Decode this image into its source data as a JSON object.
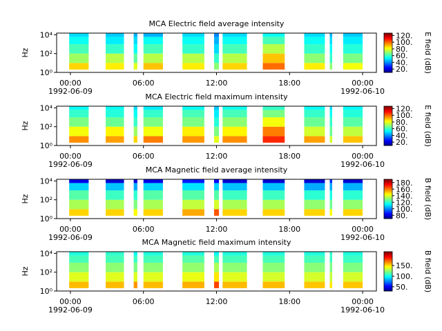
{
  "chart_data": [
    {
      "type": "spectrogram",
      "title": "MCA  Electric field average intensity",
      "ylabel": "Hz",
      "zlabel": "E field (dB)",
      "log_y": true,
      "xlim": [
        -1.13,
        25.13
      ],
      "xticks": [
        {
          "value": 0,
          "label": "00:00"
        },
        {
          "value": 6,
          "label": "06:00"
        },
        {
          "value": 12,
          "label": "12:00"
        },
        {
          "value": 18,
          "label": "18:00"
        },
        {
          "value": 24,
          "label": "00:00"
        }
      ],
      "xtick_dates": [
        {
          "value": 0,
          "label": "1992-06-09"
        },
        {
          "value": 24,
          "label": "1992-06-10"
        }
      ],
      "ylim": [
        1,
        15000
      ],
      "yticks": [
        {
          "value": 1,
          "label": "10⁰"
        },
        {
          "value": 100,
          "label": "10²"
        },
        {
          "value": 10000,
          "label": "10⁴"
        }
      ],
      "zlim": [
        10,
        127
      ],
      "zticks": [
        {
          "value": 20,
          "label": "20."
        },
        {
          "value": 40,
          "label": "40."
        },
        {
          "value": 60,
          "label": "60."
        },
        {
          "value": 80,
          "label": "80."
        },
        {
          "value": 100,
          "label": "100."
        },
        {
          "value": 120,
          "label": "120."
        }
      ],
      "segments": [
        [
          -0.1,
          1.5
        ],
        [
          2.9,
          4.4
        ],
        [
          5.2,
          5.5
        ],
        [
          6.0,
          7.6
        ],
        [
          9.2,
          11.0
        ],
        [
          11.8,
          12.2
        ],
        [
          12.5,
          14.5
        ],
        [
          15.8,
          17.6
        ],
        [
          19.2,
          20.9
        ],
        [
          21.3,
          21.5
        ],
        [
          22.4,
          24.0
        ]
      ],
      "bands": [
        2,
        10,
        100,
        1000,
        6000,
        14000
      ],
      "z": [
        [
          88,
          72,
          62,
          55,
          50
        ],
        [
          85,
          75,
          60,
          52,
          48
        ],
        [
          80,
          65,
          55,
          50,
          45
        ],
        [
          90,
          75,
          62,
          55,
          45
        ],
        [
          85,
          75,
          60,
          55,
          50
        ],
        [
          70,
          60,
          50,
          45,
          40
        ],
        [
          88,
          75,
          62,
          55,
          50
        ],
        [
          100,
          90,
          75,
          62,
          55
        ],
        [
          85,
          70,
          60,
          55,
          50
        ],
        [
          70,
          60,
          55,
          50,
          45
        ],
        [
          82,
          68,
          58,
          52,
          48
        ]
      ]
    },
    {
      "type": "spectrogram",
      "title": "MCA  Electric field maximum intensity",
      "ylabel": "Hz",
      "zlabel": "E field (dB)",
      "log_y": true,
      "xlim": [
        -1.13,
        25.13
      ],
      "xticks": [
        {
          "value": 0,
          "label": "00:00"
        },
        {
          "value": 6,
          "label": "06:00"
        },
        {
          "value": 12,
          "label": "12:00"
        },
        {
          "value": 18,
          "label": "18:00"
        },
        {
          "value": 24,
          "label": "00:00"
        }
      ],
      "xtick_dates": [
        {
          "value": 0,
          "label": "1992-06-09"
        },
        {
          "value": 24,
          "label": "1992-06-10"
        }
      ],
      "ylim": [
        1,
        15000
      ],
      "yticks": [
        {
          "value": 1,
          "label": "10⁰"
        },
        {
          "value": 100,
          "label": "10²"
        },
        {
          "value": 10000,
          "label": "10⁴"
        }
      ],
      "zlim": [
        10,
        127
      ],
      "zticks": [
        {
          "value": 20,
          "label": "20."
        },
        {
          "value": 40,
          "label": "40."
        },
        {
          "value": 60,
          "label": "60."
        },
        {
          "value": 80,
          "label": "80."
        },
        {
          "value": 100,
          "label": "100."
        },
        {
          "value": 120,
          "label": "120."
        }
      ],
      "segments": [
        [
          -0.1,
          1.5
        ],
        [
          2.9,
          4.4
        ],
        [
          5.2,
          5.5
        ],
        [
          6.0,
          7.6
        ],
        [
          9.2,
          11.0
        ],
        [
          11.8,
          12.2
        ],
        [
          12.5,
          14.5
        ],
        [
          15.8,
          17.6
        ],
        [
          19.2,
          20.9
        ],
        [
          21.3,
          21.5
        ],
        [
          22.4,
          24.0
        ]
      ],
      "bands": [
        2,
        10,
        100,
        1000,
        6000,
        14000
      ],
      "z": [
        [
          96,
          82,
          68,
          60,
          55
        ],
        [
          94,
          84,
          66,
          58,
          55
        ],
        [
          88,
          72,
          60,
          55,
          50
        ],
        [
          98,
          82,
          68,
          60,
          52
        ],
        [
          95,
          85,
          68,
          62,
          55
        ],
        [
          80,
          68,
          58,
          52,
          48
        ],
        [
          96,
          84,
          70,
          62,
          56
        ],
        [
          108,
          98,
          82,
          68,
          60
        ],
        [
          94,
          78,
          66,
          60,
          55
        ],
        [
          78,
          66,
          60,
          55,
          50
        ],
        [
          90,
          76,
          64,
          58,
          54
        ]
      ]
    },
    {
      "type": "spectrogram",
      "title": "MCA  Magnetic field average intensity",
      "ylabel": "Hz",
      "zlabel": "B field (dB)",
      "log_y": true,
      "xlim": [
        -1.13,
        25.13
      ],
      "xticks": [
        {
          "value": 0,
          "label": "00:00"
        },
        {
          "value": 6,
          "label": "06:00"
        },
        {
          "value": 12,
          "label": "12:00"
        },
        {
          "value": 18,
          "label": "18:00"
        },
        {
          "value": 24,
          "label": "00:00"
        }
      ],
      "xtick_dates": [
        {
          "value": 0,
          "label": "1992-06-09"
        },
        {
          "value": 24,
          "label": "1992-06-10"
        }
      ],
      "ylim": [
        1,
        15000
      ],
      "yticks": [
        {
          "value": 1,
          "label": "10⁰"
        },
        {
          "value": 100,
          "label": "10²"
        },
        {
          "value": 10000,
          "label": "10⁴"
        }
      ],
      "zlim": [
        70,
        190
      ],
      "zticks": [
        {
          "value": 80,
          "label": "80."
        },
        {
          "value": 100,
          "label": "100."
        },
        {
          "value": 120,
          "label": "120."
        },
        {
          "value": 140,
          "label": "140."
        },
        {
          "value": 160,
          "label": "160."
        },
        {
          "value": 180,
          "label": "180."
        }
      ],
      "segments": [
        [
          -0.1,
          1.5
        ],
        [
          2.9,
          4.4
        ],
        [
          5.2,
          5.5
        ],
        [
          6.0,
          7.6
        ],
        [
          9.2,
          11.0
        ],
        [
          11.8,
          12.2
        ],
        [
          12.5,
          14.5
        ],
        [
          15.8,
          17.6
        ],
        [
          19.2,
          20.9
        ],
        [
          21.3,
          21.5
        ],
        [
          22.4,
          24.0
        ]
      ],
      "bands": [
        2,
        10,
        100,
        1000,
        6000,
        14000
      ],
      "z": [
        [
          150,
          135,
          125,
          110,
          82
        ],
        [
          150,
          135,
          122,
          108,
          80
        ],
        [
          145,
          130,
          120,
          105,
          80
        ],
        [
          150,
          135,
          125,
          110,
          82
        ],
        [
          155,
          138,
          125,
          112,
          88
        ],
        [
          165,
          140,
          125,
          110,
          85
        ],
        [
          150,
          135,
          122,
          108,
          80
        ],
        [
          150,
          135,
          122,
          108,
          80
        ],
        [
          150,
          132,
          120,
          105,
          80
        ],
        [
          145,
          128,
          118,
          105,
          90
        ],
        [
          150,
          132,
          120,
          106,
          80
        ]
      ]
    },
    {
      "type": "spectrogram",
      "title": "MCA  Magnetic field maximum intensity",
      "ylabel": "Hz",
      "zlabel": "B field (dB)",
      "log_y": true,
      "xlim": [
        -1.13,
        25.13
      ],
      "xticks": [
        {
          "value": 0,
          "label": "00:00"
        },
        {
          "value": 6,
          "label": "06:00"
        },
        {
          "value": 12,
          "label": "12:00"
        },
        {
          "value": 18,
          "label": "18:00"
        },
        {
          "value": 24,
          "label": "00:00"
        }
      ],
      "xtick_dates": [
        {
          "value": 0,
          "label": "1992-06-09"
        },
        {
          "value": 24,
          "label": "1992-06-10"
        }
      ],
      "ylim": [
        1,
        15000
      ],
      "yticks": [
        {
          "value": 1,
          "label": "10⁰"
        },
        {
          "value": 100,
          "label": "10²"
        },
        {
          "value": 10000,
          "label": "10⁴"
        }
      ],
      "zlim": [
        30,
        215
      ],
      "zticks": [
        {
          "value": 50,
          "label": "50."
        },
        {
          "value": 100,
          "label": "100."
        },
        {
          "value": 150,
          "label": "150."
        }
      ],
      "segments": [
        [
          -0.1,
          1.5
        ],
        [
          2.9,
          4.4
        ],
        [
          5.2,
          5.5
        ],
        [
          6.0,
          7.6
        ],
        [
          9.2,
          11.0
        ],
        [
          11.8,
          12.2
        ],
        [
          12.5,
          14.5
        ],
        [
          15.8,
          17.6
        ],
        [
          19.2,
          20.9
        ],
        [
          21.3,
          21.5
        ],
        [
          22.4,
          24.0
        ]
      ],
      "bands": [
        2,
        10,
        100,
        1000,
        6000,
        14000
      ],
      "z": [
        [
          158,
          140,
          125,
          112,
          105
        ],
        [
          158,
          140,
          125,
          112,
          108
        ],
        [
          165,
          140,
          122,
          110,
          100
        ],
        [
          158,
          140,
          125,
          112,
          105
        ],
        [
          160,
          142,
          126,
          115,
          105
        ],
        [
          180,
          150,
          130,
          112,
          100
        ],
        [
          158,
          140,
          125,
          112,
          105
        ],
        [
          158,
          138,
          124,
          112,
          105
        ],
        [
          156,
          138,
          124,
          112,
          105
        ],
        [
          150,
          135,
          122,
          110,
          108
        ],
        [
          156,
          138,
          122,
          110,
          105
        ]
      ]
    }
  ]
}
